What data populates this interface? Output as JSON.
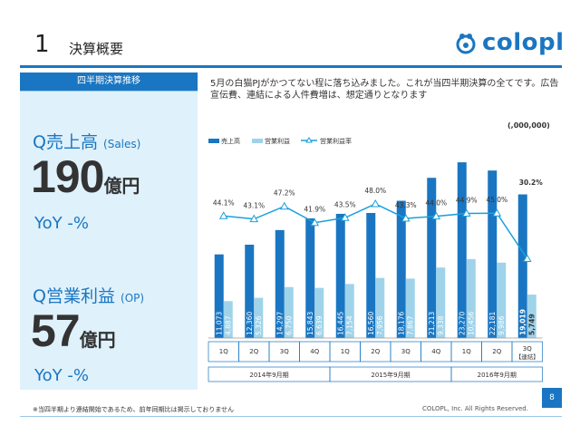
{
  "header": {
    "number": "1",
    "title": "決算概要",
    "logo": "colopl"
  },
  "left_panel": {
    "tab_label": "四半期決算推移",
    "sales": {
      "label": "Q売上高",
      "label_sub": "(Sales)",
      "value": "190",
      "unit": "億円",
      "yoy": "YoY -%"
    },
    "op": {
      "label": "Q営業利益",
      "label_sub": "(OP)",
      "value": "57",
      "unit": "億円",
      "yoy": "YoY -%"
    }
  },
  "description": "5月の白猫PJがかつてない程に落ち込みました。これが当四半期決算の全てです。広告宣伝費、連結による人件費増は、想定通りとなります",
  "unit_note": "(,000,000)",
  "chart_data": {
    "type": "bar",
    "legend_position": "top-left",
    "categories": [
      "1Q",
      "2Q",
      "3Q",
      "4Q",
      "1Q",
      "2Q",
      "3Q",
      "4Q",
      "1Q",
      "2Q",
      "3Q"
    ],
    "category_notes": [
      "",
      "",
      "",
      "",
      "",
      "",
      "",
      "",
      "",
      "",
      "【連結】"
    ],
    "groups": [
      {
        "label": "2014年9月期",
        "start": 0,
        "count": 4
      },
      {
        "label": "2015年9月期",
        "start": 4,
        "count": 4
      },
      {
        "label": "2016年9月期",
        "start": 8,
        "count": 3
      }
    ],
    "series": [
      {
        "name": "売上高",
        "type": "bar",
        "color": "#1a76c2",
        "values": [
          11073,
          12360,
          14297,
          15843,
          16445,
          16560,
          18176,
          21213,
          23270,
          22181,
          19019
        ],
        "labels": [
          "11,073",
          "12,360",
          "14,297",
          "15,843",
          "16,445",
          "16,560",
          "18,176",
          "21,213",
          "23,270",
          "22,181",
          "19,019"
        ]
      },
      {
        "name": "営業利益",
        "type": "bar",
        "color": "#9fd3ea",
        "values": [
          4887,
          5326,
          6750,
          6639,
          7154,
          7956,
          7867,
          9338,
          10456,
          9986,
          5749
        ],
        "labels": [
          "4,887",
          "5,326",
          "6,750",
          "6,639",
          "7,154",
          "7,956",
          "7,867",
          "9,338",
          "10,456",
          "9,986",
          "5,749"
        ]
      },
      {
        "name": "営業利益率",
        "type": "line",
        "color": "#1aa0dc",
        "values": [
          44.1,
          43.1,
          47.2,
          41.9,
          43.5,
          48.0,
          43.3,
          44.0,
          44.9,
          45.0,
          30.2
        ],
        "labels": [
          "44.1%",
          "43.1%",
          "47.2%",
          "41.9%",
          "43.5%",
          "48.0%",
          "43.3%",
          "44.0%",
          "44.9%",
          "45.0%",
          "30.2%"
        ]
      }
    ]
  },
  "footer": {
    "footnote": "※当四半期より連結開始であるため、前年同期比は掲示しておりません",
    "copyright": "COLOPL, Inc. All Rights Reserved.",
    "page": "8"
  }
}
